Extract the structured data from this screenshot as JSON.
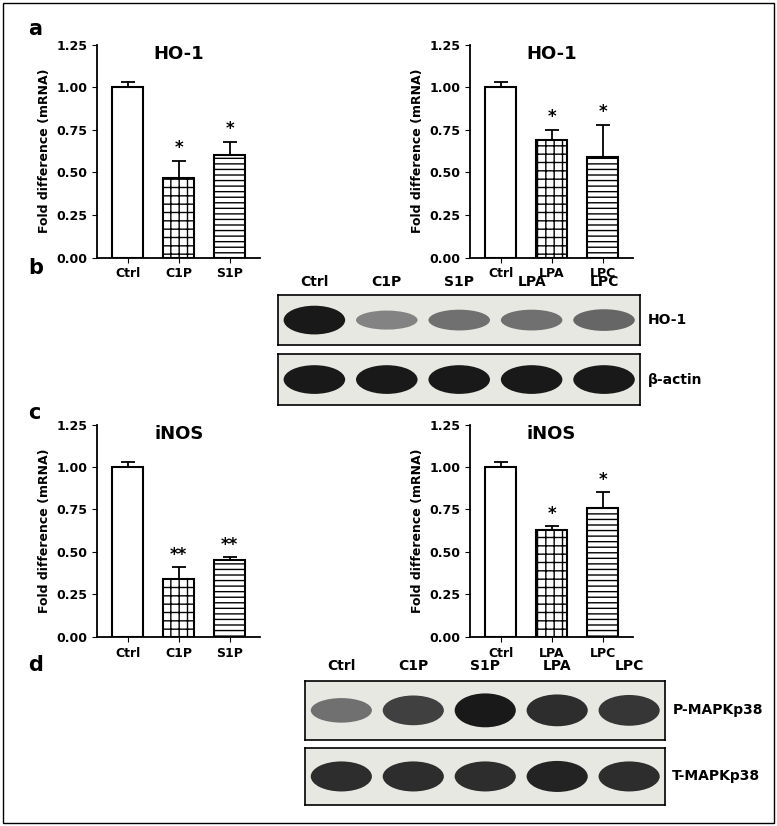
{
  "chart_data": [
    {
      "type": "bar",
      "title": "HO-1",
      "y_label": "Fold difference (mRNA)",
      "categories": [
        "Ctrl",
        "C1P",
        "S1P"
      ],
      "values": [
        1.0,
        0.47,
        0.6
      ],
      "errors": [
        0.03,
        0.1,
        0.08
      ],
      "significance": [
        null,
        "*",
        "*"
      ],
      "colors": [
        "#ffffff",
        "#ffffff",
        "#ffffff"
      ],
      "ylim": [
        0,
        1.25
      ],
      "yticks": [
        {
          "value": 0,
          "label": "0.00"
        },
        {
          "value": 0.25,
          "label": "0.25"
        },
        {
          "value": 0.5,
          "label": "0.50"
        },
        {
          "value": 0.75,
          "label": "0.75"
        },
        {
          "value": 1.0,
          "label": "1.00"
        },
        {
          "value": 1.25,
          "label": "1.25"
        }
      ]
    },
    {
      "type": "bar",
      "title": "HO-1",
      "y_label": "Fold difference (mRNA)",
      "categories": [
        "Ctrl",
        "LPA",
        "LPC"
      ],
      "values": [
        1.0,
        0.69,
        0.59
      ],
      "errors": [
        0.03,
        0.06,
        0.19
      ],
      "significance": [
        null,
        "*",
        "*"
      ],
      "colors": [
        "#ffffff",
        "#ffffff",
        "#ffffff"
      ],
      "ylim": [
        0,
        1.25
      ],
      "yticks": [
        {
          "value": 0,
          "label": "0.00"
        },
        {
          "value": 0.25,
          "label": "0.25"
        },
        {
          "value": 0.5,
          "label": "0.50"
        },
        {
          "value": 0.75,
          "label": "0.75"
        },
        {
          "value": 1.0,
          "label": "1.00"
        },
        {
          "value": 1.25,
          "label": "1.25"
        }
      ]
    },
    {
      "type": "bar",
      "title": "iNOS",
      "y_label": "Fold difference (mRNA)",
      "categories": [
        "Ctrl",
        "C1P",
        "S1P"
      ],
      "values": [
        1.0,
        0.34,
        0.45
      ],
      "errors": [
        0.03,
        0.07,
        0.02
      ],
      "significance": [
        null,
        "**",
        "**"
      ],
      "colors": [
        "#ffffff",
        "#ffffff",
        "#ffffff"
      ],
      "ylim": [
        0,
        1.25
      ],
      "yticks": [
        {
          "value": 0,
          "label": "0.00"
        },
        {
          "value": 0.25,
          "label": "0.25"
        },
        {
          "value": 0.5,
          "label": "0.50"
        },
        {
          "value": 0.75,
          "label": "0.75"
        },
        {
          "value": 1.0,
          "label": "1.00"
        },
        {
          "value": 1.25,
          "label": "1.25"
        }
      ]
    },
    {
      "type": "bar",
      "title": "iNOS",
      "y_label": "Fold difference (mRNA)",
      "categories": [
        "Ctrl",
        "LPA",
        "LPC"
      ],
      "values": [
        1.0,
        0.63,
        0.76
      ],
      "errors": [
        0.03,
        0.02,
        0.09
      ],
      "significance": [
        null,
        "*",
        "*"
      ],
      "colors": [
        "#ffffff",
        "#ffffff",
        "#ffffff"
      ],
      "ylim": [
        0,
        1.25
      ],
      "yticks": [
        {
          "value": 0,
          "label": "0.00"
        },
        {
          "value": 0.25,
          "label": "0.25"
        },
        {
          "value": 0.5,
          "label": "0.50"
        },
        {
          "value": 0.75,
          "label": "0.75"
        },
        {
          "value": 1.0,
          "label": "1.00"
        },
        {
          "value": 1.25,
          "label": "1.25"
        }
      ]
    }
  ],
  "panel_labels": [
    "a",
    "b",
    "c",
    "d"
  ],
  "blots": [
    {
      "lanes": [
        "Ctrl",
        "C1P",
        "S1P",
        "LPA",
        "LPC"
      ],
      "rows": [
        {
          "label": "HO-1",
          "intensity": [
            1.0,
            0.45,
            0.55,
            0.55,
            0.6
          ]
        },
        {
          "label": "β-actin",
          "intensity": [
            1.0,
            1.0,
            1.0,
            1.0,
            1.0
          ]
        }
      ]
    },
    {
      "lanes": [
        "Ctrl",
        "C1P",
        "S1P",
        "LPA",
        "LPC"
      ],
      "rows": [
        {
          "label": "P-MAPKp38",
          "intensity": [
            0.55,
            0.8,
            1.0,
            0.9,
            0.85
          ]
        },
        {
          "label": "T-MAPKp38",
          "intensity": [
            0.9,
            0.9,
            0.9,
            0.95,
            0.9
          ]
        }
      ]
    }
  ]
}
